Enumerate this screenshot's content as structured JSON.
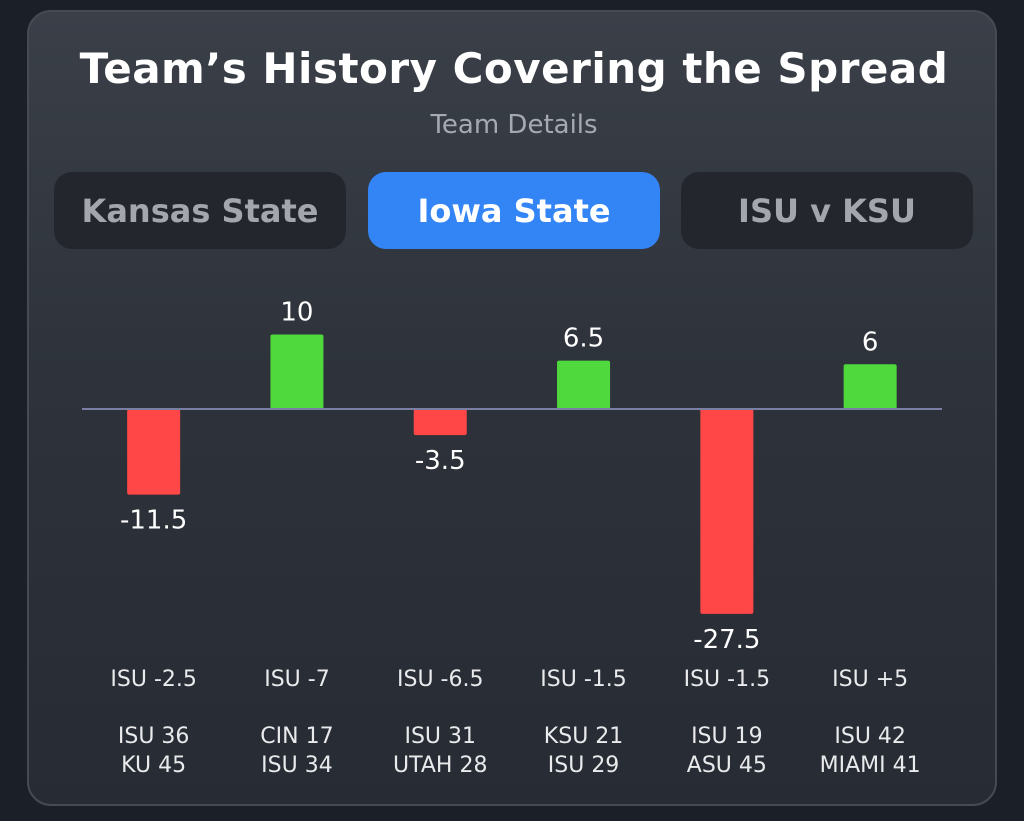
{
  "title": "Team’s History Covering the Spread",
  "subtitle": "Team Details",
  "tabs": [
    {
      "label": "Kansas State",
      "active": false
    },
    {
      "label": "Iowa State",
      "active": true
    },
    {
      "label": "ISU v KSU",
      "active": false
    }
  ],
  "colors": {
    "positive": "#4fd93c",
    "negative": "#ff4747",
    "baseline": "#7a7fa3"
  },
  "chart_data": {
    "type": "bar",
    "categories": [
      "ISU -2.5",
      "ISU -7",
      "ISU -6.5",
      "ISU -1.5",
      "ISU -1.5",
      "ISU +5"
    ],
    "values": [
      -11.5,
      10,
      -3.5,
      6.5,
      -27.5,
      6
    ],
    "value_labels": [
      "-11.5",
      "10",
      "-3.5",
      "6.5",
      "-27.5",
      "6"
    ],
    "scores": [
      [
        "ISU 36",
        "KU 45"
      ],
      [
        "CIN 17",
        "ISU 34"
      ],
      [
        "ISU 31",
        "UTAH 28"
      ],
      [
        "KSU 21",
        "ISU 29"
      ],
      [
        "ISU 19",
        "ASU 45"
      ],
      [
        "ISU 42",
        "MIAMI 41"
      ]
    ],
    "grid": false,
    "legend": "none"
  }
}
